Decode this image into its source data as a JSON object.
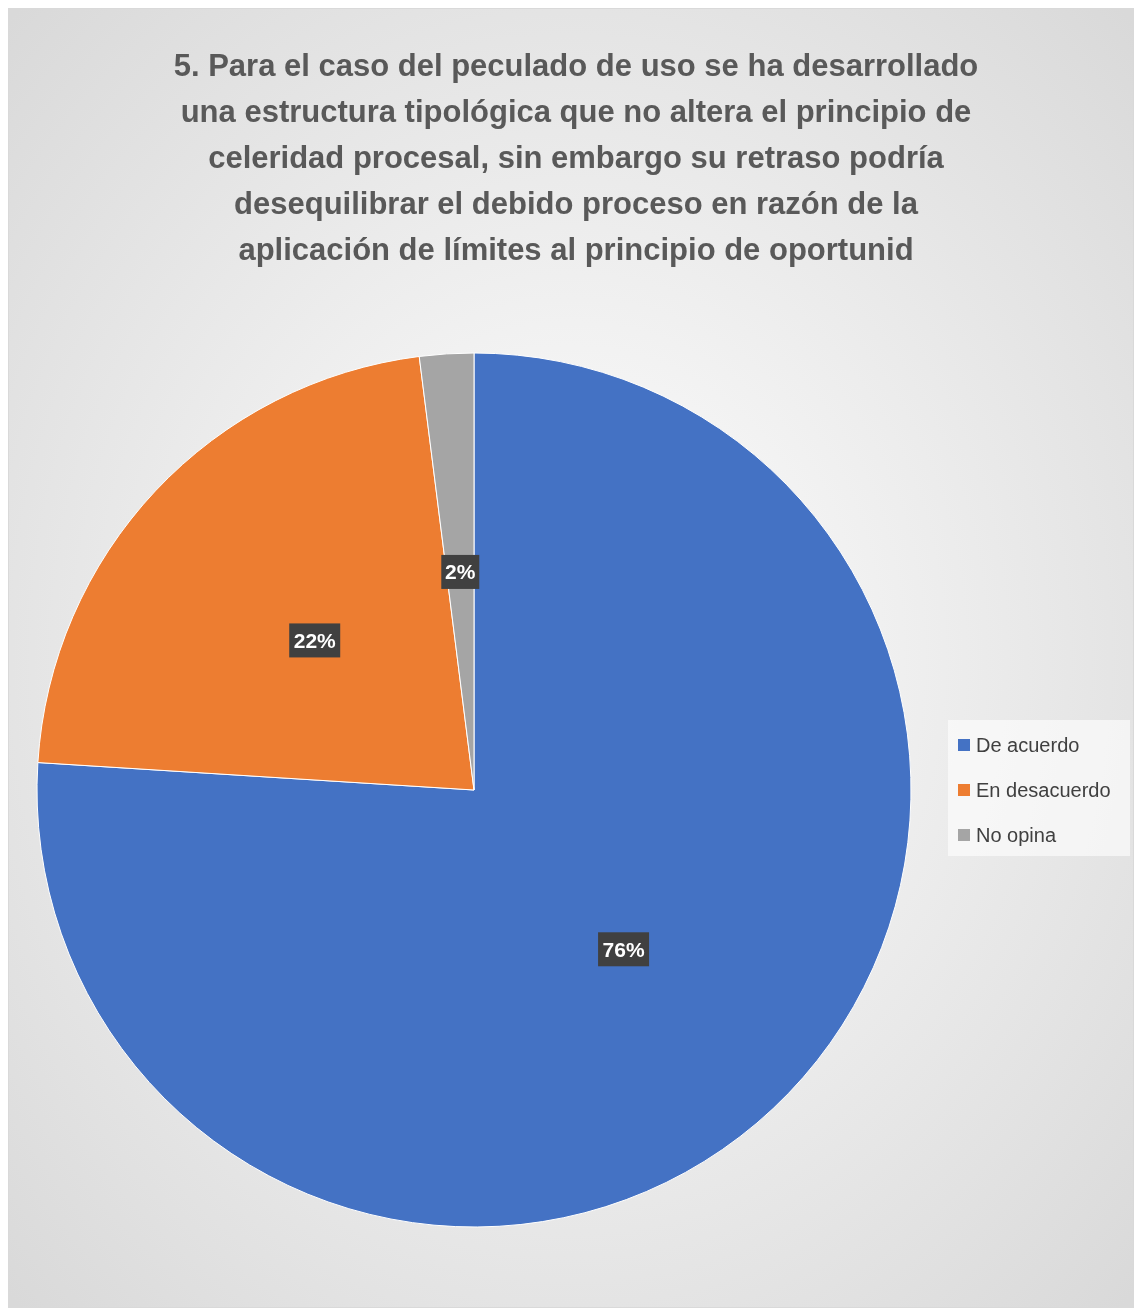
{
  "chart_data": {
    "type": "pie",
    "title": "5. Para el caso del peculado de uso se ha desarrollado una estructura tipológica que no altera el principio de celeridad procesal, sin embargo su retraso podría desequilibrar el debido proceso en razón de la aplicación de límites al principio de oportunid",
    "categories": [
      "De acuerdo",
      "En desacuerdo",
      "No opina"
    ],
    "values": [
      76,
      22,
      2
    ],
    "value_labels": [
      "76%",
      "22%",
      "2%"
    ],
    "colors": [
      "#4472c4",
      "#ed7d31",
      "#a5a5a5"
    ],
    "legend": "right"
  }
}
